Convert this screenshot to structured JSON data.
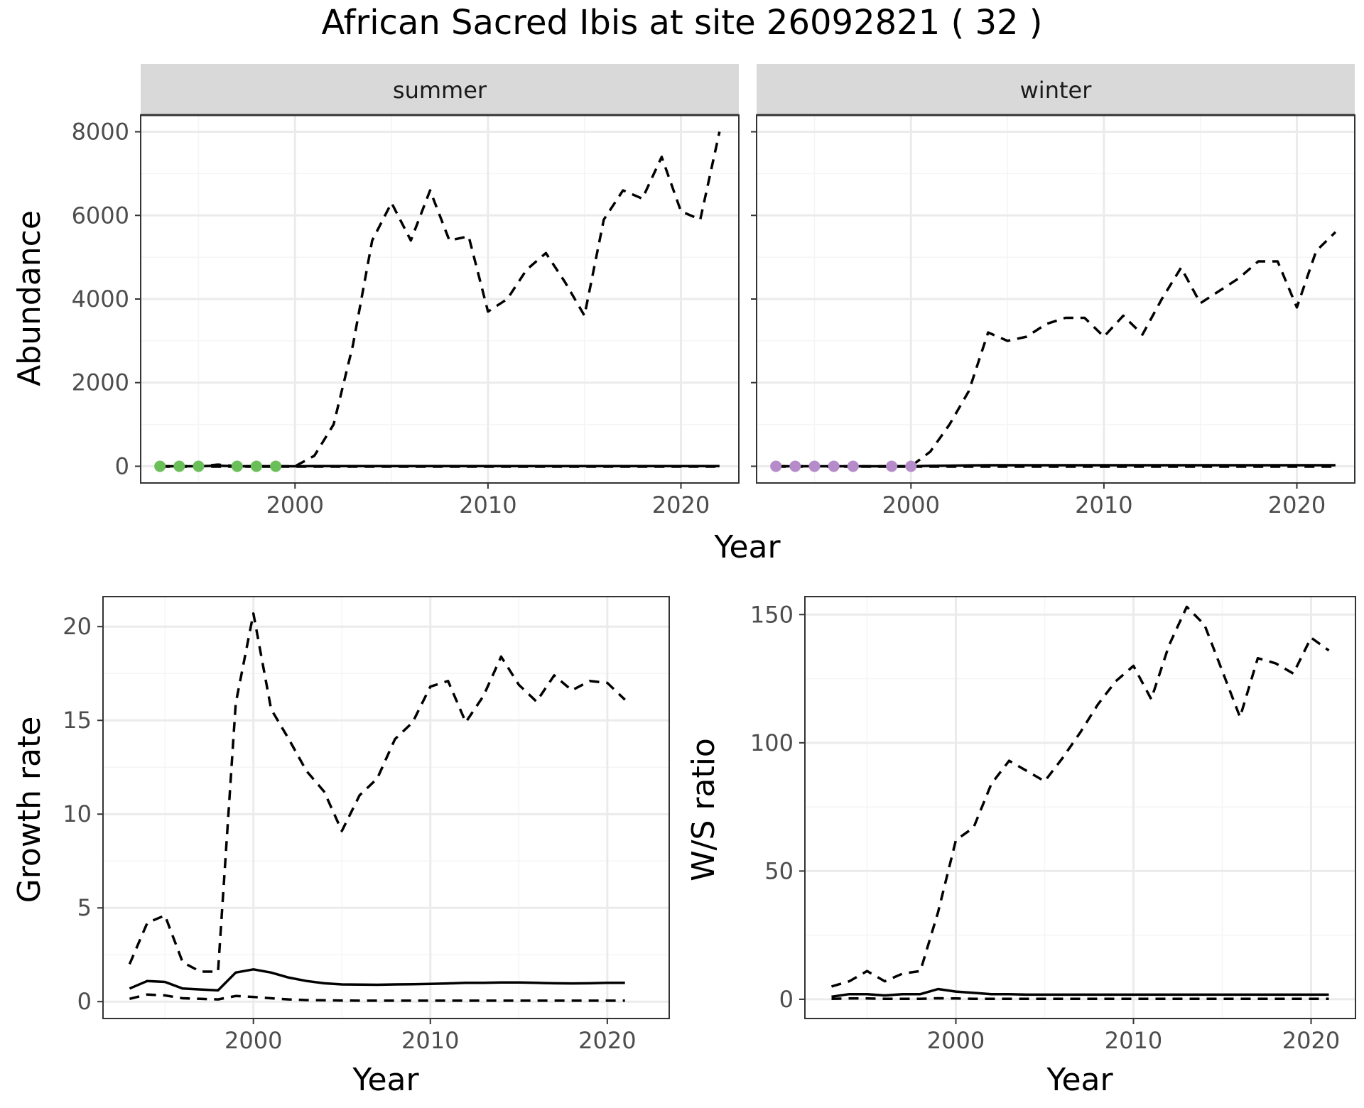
{
  "title": "African Sacred Ibis at site 26092821 ( 32 )",
  "colors": {
    "summer_points": "#6bbf59",
    "winter_points": "#b58cc9",
    "line": "#000000",
    "grid_major": "#ebebeb",
    "grid_minor": "#f5f5f5",
    "strip_bg": "#d9d9d9"
  },
  "chart_data": [
    {
      "type": "line",
      "panel": "summer",
      "strip": "summer",
      "xlabel": "Year",
      "ylabel": "Abundance",
      "xlim": [
        1992,
        2023
      ],
      "ylim": [
        -400,
        8400
      ],
      "xticks": [
        2000,
        2010,
        2020
      ],
      "yticks": [
        0,
        2000,
        4000,
        6000,
        8000
      ],
      "grid": true,
      "series": [
        {
          "style": "dashed",
          "x": [
            1993,
            1994,
            1995,
            1996,
            1997,
            1998,
            1999,
            2000,
            2001,
            2002,
            2003,
            2004,
            2005,
            2006,
            2007,
            2008,
            2009,
            2010,
            2011,
            2012,
            2013,
            2014,
            2015,
            2016,
            2017,
            2018,
            2019,
            2020,
            2021,
            2022
          ],
          "y": [
            0,
            0,
            0,
            40,
            0,
            0,
            0,
            0,
            250,
            1000,
            2900,
            5400,
            6300,
            5400,
            6600,
            5400,
            5500,
            3700,
            4000,
            4700,
            5100,
            4400,
            3600,
            5900,
            6600,
            6400,
            7400,
            6100,
            5900,
            8000
          ]
        },
        {
          "style": "solid",
          "x": [
            1993,
            1994,
            1995,
            1996,
            1997,
            1998,
            1999,
            2000,
            2001,
            2002,
            2003,
            2004,
            2005,
            2006,
            2007,
            2008,
            2009,
            2010,
            2011,
            2012,
            2013,
            2014,
            2015,
            2016,
            2017,
            2018,
            2019,
            2020,
            2021,
            2022
          ],
          "y": [
            0,
            0,
            0,
            15,
            0,
            0,
            0,
            0,
            5,
            5,
            5,
            5,
            5,
            5,
            5,
            5,
            5,
            5,
            5,
            5,
            5,
            5,
            5,
            5,
            5,
            5,
            5,
            5,
            5,
            5
          ]
        },
        {
          "style": "dashed",
          "x": [
            1993,
            2022
          ],
          "y": [
            -10,
            -10
          ]
        }
      ],
      "points": {
        "x": [
          1993,
          1994,
          1995,
          1997,
          1998,
          1999
        ],
        "y": [
          0,
          0,
          0,
          0,
          0,
          0
        ]
      }
    },
    {
      "type": "line",
      "panel": "winter",
      "strip": "winter",
      "xlabel": "Year",
      "ylabel": "Abundance",
      "xlim": [
        1992,
        2023
      ],
      "ylim": [
        -400,
        8400
      ],
      "xticks": [
        2000,
        2010,
        2020
      ],
      "yticks": [
        0,
        2000,
        4000,
        6000,
        8000
      ],
      "grid": true,
      "series": [
        {
          "style": "dashed",
          "x": [
            1993,
            1994,
            1995,
            1996,
            1997,
            1998,
            1999,
            2000,
            2001,
            2002,
            2003,
            2004,
            2005,
            2006,
            2007,
            2008,
            2009,
            2010,
            2011,
            2012,
            2013,
            2014,
            2015,
            2016,
            2017,
            2018,
            2019,
            2020,
            2021,
            2022
          ],
          "y": [
            0,
            0,
            0,
            0,
            0,
            0,
            0,
            0,
            350,
            1000,
            1800,
            3200,
            3000,
            3100,
            3400,
            3550,
            3550,
            3100,
            3600,
            3150,
            4000,
            4750,
            3900,
            4200,
            4500,
            4900,
            4900,
            3800,
            5150,
            5600
          ]
        },
        {
          "style": "solid",
          "x": [
            1993,
            1994,
            1995,
            1996,
            1997,
            1998,
            1999,
            2000,
            2001,
            2002,
            2003,
            2004,
            2005,
            2006,
            2007,
            2008,
            2009,
            2010,
            2011,
            2012,
            2013,
            2014,
            2015,
            2016,
            2017,
            2018,
            2019,
            2020,
            2021,
            2022
          ],
          "y": [
            0,
            0,
            0,
            0,
            0,
            0,
            0,
            0,
            10,
            15,
            20,
            25,
            25,
            25,
            25,
            25,
            25,
            25,
            25,
            25,
            25,
            25,
            25,
            25,
            25,
            25,
            25,
            25,
            25,
            25
          ]
        },
        {
          "style": "dashed",
          "x": [
            1993,
            2022
          ],
          "y": [
            -10,
            -10
          ]
        }
      ],
      "points": {
        "x": [
          1993,
          1994,
          1995,
          1996,
          1997,
          1999,
          2000
        ],
        "y": [
          0,
          0,
          0,
          0,
          0,
          0,
          0
        ]
      }
    },
    {
      "type": "line",
      "panel": "growth",
      "xlabel": "Year",
      "ylabel": "Growth rate",
      "xlim": [
        1991.5,
        2023.5
      ],
      "ylim": [
        -0.9,
        21.6
      ],
      "xticks": [
        2000,
        2010,
        2020
      ],
      "yticks": [
        0,
        5,
        10,
        15,
        20
      ],
      "grid": true,
      "series": [
        {
          "style": "dashed",
          "x": [
            1993,
            1994,
            1995,
            1996,
            1997,
            1998,
            1999,
            2000,
            2001,
            2002,
            2003,
            2004,
            2005,
            2006,
            2007,
            2008,
            2009,
            2010,
            2011,
            2012,
            2013,
            2014,
            2015,
            2016,
            2017,
            2018,
            2019,
            2020,
            2021
          ],
          "y": [
            2.0,
            4.2,
            4.6,
            2.1,
            1.6,
            1.6,
            15.9,
            20.7,
            15.6,
            14.0,
            12.3,
            11.2,
            9.1,
            11.0,
            11.9,
            14.0,
            14.9,
            16.8,
            17.1,
            14.9,
            16.3,
            18.4,
            16.9,
            16.0,
            17.4,
            16.6,
            17.1,
            17.0,
            16.1
          ]
        },
        {
          "style": "solid",
          "x": [
            1993,
            1994,
            1995,
            1996,
            1997,
            1998,
            1999,
            2000,
            2001,
            2002,
            2003,
            2004,
            2005,
            2006,
            2007,
            2008,
            2009,
            2010,
            2011,
            2012,
            2013,
            2014,
            2015,
            2016,
            2017,
            2018,
            2019,
            2020,
            2021
          ],
          "y": [
            0.7,
            1.1,
            1.05,
            0.7,
            0.65,
            0.6,
            1.55,
            1.72,
            1.55,
            1.28,
            1.1,
            0.98,
            0.92,
            0.91,
            0.9,
            0.92,
            0.93,
            0.95,
            0.97,
            1.0,
            1.0,
            1.02,
            1.02,
            1.0,
            0.98,
            0.97,
            0.98,
            1.0,
            1.0
          ]
        },
        {
          "style": "dashed",
          "x": [
            1993,
            1994,
            1995,
            1996,
            1997,
            1998,
            1999,
            2000,
            2001,
            2002,
            2003,
            2004,
            2005,
            2006,
            2007,
            2008,
            2009,
            2010,
            2011,
            2012,
            2013,
            2014,
            2015,
            2016,
            2017,
            2018,
            2019,
            2020,
            2021
          ],
          "y": [
            0.15,
            0.38,
            0.33,
            0.18,
            0.15,
            0.12,
            0.3,
            0.25,
            0.18,
            0.12,
            0.08,
            0.07,
            0.06,
            0.05,
            0.05,
            0.05,
            0.05,
            0.05,
            0.05,
            0.05,
            0.05,
            0.05,
            0.05,
            0.05,
            0.05,
            0.05,
            0.05,
            0.05,
            0.05
          ]
        }
      ]
    },
    {
      "type": "line",
      "panel": "ratio",
      "xlabel": "Year",
      "ylabel": "W/S ratio",
      "xlim": [
        1991.5,
        2022.5
      ],
      "ylim": [
        -7.5,
        157
      ],
      "xticks": [
        2000,
        2010,
        2020
      ],
      "yticks": [
        0,
        50,
        100,
        150
      ],
      "grid": true,
      "series": [
        {
          "style": "dashed",
          "x": [
            1993,
            1994,
            1995,
            1996,
            1997,
            1998,
            1999,
            2000,
            2001,
            2002,
            2003,
            2004,
            2005,
            2006,
            2007,
            2008,
            2009,
            2010,
            2011,
            2012,
            2013,
            2014,
            2015,
            2016,
            2017,
            2018,
            2019,
            2020,
            2021
          ],
          "y": [
            5,
            7,
            11,
            7,
            10,
            11,
            34,
            62,
            67,
            84,
            93,
            89,
            85,
            94,
            104,
            115,
            124,
            130,
            117,
            138,
            153,
            146,
            128,
            110,
            133,
            131,
            127,
            141,
            136
          ]
        },
        {
          "style": "solid",
          "x": [
            1993,
            1994,
            1995,
            1996,
            1997,
            1998,
            1999,
            2000,
            2001,
            2002,
            2003,
            2004,
            2005,
            2006,
            2007,
            2008,
            2009,
            2010,
            2011,
            2012,
            2013,
            2014,
            2015,
            2016,
            2017,
            2018,
            2019,
            2020,
            2021
          ],
          "y": [
            1,
            2,
            2,
            1.5,
            2,
            2,
            4,
            3,
            2.5,
            2,
            2,
            1.8,
            1.8,
            1.8,
            1.8,
            1.8,
            1.8,
            1.8,
            1.8,
            1.8,
            1.8,
            1.8,
            1.8,
            1.8,
            1.8,
            1.8,
            1.8,
            1.8,
            1.8
          ]
        },
        {
          "style": "dashed",
          "x": [
            1993,
            1994,
            1995,
            1996,
            1997,
            1998,
            1999,
            2000,
            2001,
            2002,
            2003,
            2004,
            2005,
            2006,
            2007,
            2008,
            2009,
            2010,
            2011,
            2012,
            2013,
            2014,
            2015,
            2016,
            2017,
            2018,
            2019,
            2020,
            2021
          ],
          "y": [
            0.2,
            0.3,
            0.3,
            0.2,
            0.2,
            0.2,
            0.4,
            0.3,
            0.2,
            0.2,
            0.2,
            0.2,
            0.2,
            0.2,
            0.2,
            0.2,
            0.2,
            0.2,
            0.2,
            0.2,
            0.2,
            0.2,
            0.2,
            0.2,
            0.2,
            0.2,
            0.2,
            0.2,
            0.2
          ]
        }
      ]
    }
  ]
}
